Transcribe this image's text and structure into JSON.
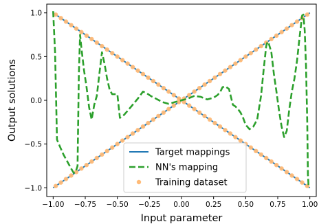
{
  "chart_data": {
    "type": "line",
    "title": "",
    "xlabel": "Input parameter",
    "ylabel": "Output solutions",
    "xlim": [
      -1.05,
      1.05
    ],
    "ylim": [
      -1.1,
      1.1
    ],
    "x_ticks": [
      -1.0,
      -0.75,
      -0.5,
      -0.25,
      0.0,
      0.25,
      0.5,
      0.75,
      1.0
    ],
    "x_tick_labels": [
      "−1.00",
      "−0.75",
      "−0.50",
      "−0.25",
      "0.00",
      "0.25",
      "0.50",
      "0.75",
      "1.00"
    ],
    "y_ticks": [
      -1.0,
      -0.5,
      0.0,
      0.5,
      1.0
    ],
    "y_tick_labels": [
      "−1.0",
      "−0.5",
      "0.0",
      "0.5",
      "1.0"
    ],
    "grid": false,
    "legend_position": "lower-center",
    "legend": [
      {
        "label": "Target mappings",
        "style": "line",
        "color": "#1f77b4"
      },
      {
        "label": "NN's mapping",
        "style": "dashed",
        "color": "#2ca02c"
      },
      {
        "label": "Training dataset",
        "style": "dots",
        "color": "#ffbb78"
      }
    ],
    "series": [
      {
        "name": "Target mappings",
        "color": "#1f77b4",
        "segments": [
          [
            [
              -1.0,
              -1.0
            ],
            [
              1.0,
              1.0
            ]
          ],
          [
            [
              -1.0,
              1.0
            ],
            [
              1.0,
              -1.0
            ]
          ]
        ]
      },
      {
        "name": "NN's mapping",
        "color": "#2ca02c",
        "x": [
          -1.0,
          -0.985,
          -0.97,
          -0.95,
          -0.92,
          -0.89,
          -0.86,
          -0.84,
          -0.825,
          -0.81,
          -0.8,
          -0.79,
          -0.78,
          -0.76,
          -0.74,
          -0.72,
          -0.7,
          -0.68,
          -0.66,
          -0.64,
          -0.62,
          -0.6,
          -0.58,
          -0.56,
          -0.54,
          -0.52,
          -0.5,
          -0.48,
          -0.45,
          -0.42,
          -0.38,
          -0.34,
          -0.3,
          -0.27,
          -0.24,
          -0.2,
          -0.15,
          -0.1,
          -0.05,
          0.0,
          0.05,
          0.1,
          0.15,
          0.2,
          0.25,
          0.28,
          0.3,
          0.32,
          0.34,
          0.37,
          0.4,
          0.42,
          0.44,
          0.46,
          0.48,
          0.5,
          0.53,
          0.56,
          0.59,
          0.62,
          0.64,
          0.66,
          0.67,
          0.68,
          0.7,
          0.72,
          0.74,
          0.76,
          0.78,
          0.8,
          0.82,
          0.84,
          0.86,
          0.88,
          0.9,
          0.92,
          0.94,
          0.95,
          0.96,
          0.97,
          0.98,
          0.985,
          0.99
        ],
        "y": [
          1.02,
          0.55,
          -0.45,
          -0.52,
          -0.62,
          -0.7,
          -0.78,
          -0.83,
          -0.82,
          -0.75,
          0.3,
          0.75,
          0.6,
          0.35,
          0.15,
          -0.08,
          -0.22,
          -0.05,
          0.05,
          0.3,
          0.55,
          0.42,
          0.25,
          0.12,
          0.07,
          0.07,
          0.07,
          -0.2,
          -0.17,
          -0.12,
          -0.05,
          0.02,
          0.1,
          0.08,
          0.05,
          0.02,
          -0.02,
          -0.04,
          -0.02,
          0.0,
          0.02,
          0.05,
          0.04,
          0.01,
          0.03,
          0.06,
          0.09,
          0.15,
          0.16,
          0.13,
          -0.05,
          -0.07,
          -0.1,
          -0.14,
          -0.2,
          -0.28,
          -0.33,
          -0.3,
          -0.22,
          0.05,
          0.35,
          0.62,
          0.67,
          0.65,
          0.55,
          0.3,
          0.1,
          -0.12,
          -0.3,
          -0.42,
          -0.35,
          -0.1,
          0.1,
          0.25,
          0.45,
          0.72,
          0.97,
          0.98,
          0.8,
          0.4,
          -0.25,
          -0.85,
          -0.98
        ]
      },
      {
        "name": "Training dataset",
        "color": "#ffbb78",
        "x": [
          -0.98,
          -0.94,
          -0.9,
          -0.86,
          -0.82,
          -0.78,
          -0.74,
          -0.7,
          -0.66,
          -0.62,
          -0.58,
          -0.54,
          -0.5,
          -0.46,
          -0.42,
          -0.38,
          -0.34,
          -0.3,
          -0.26,
          -0.22,
          -0.18,
          -0.14,
          -0.1,
          -0.06,
          -0.02,
          0.02,
          0.06,
          0.1,
          0.14,
          0.18,
          0.22,
          0.26,
          0.3,
          0.34,
          0.38,
          0.42,
          0.46,
          0.5,
          0.54,
          0.58,
          0.62,
          0.66,
          0.7,
          0.74,
          0.78,
          0.82,
          0.86,
          0.9,
          0.94,
          0.98
        ],
        "note_two_branches": true
      }
    ]
  }
}
